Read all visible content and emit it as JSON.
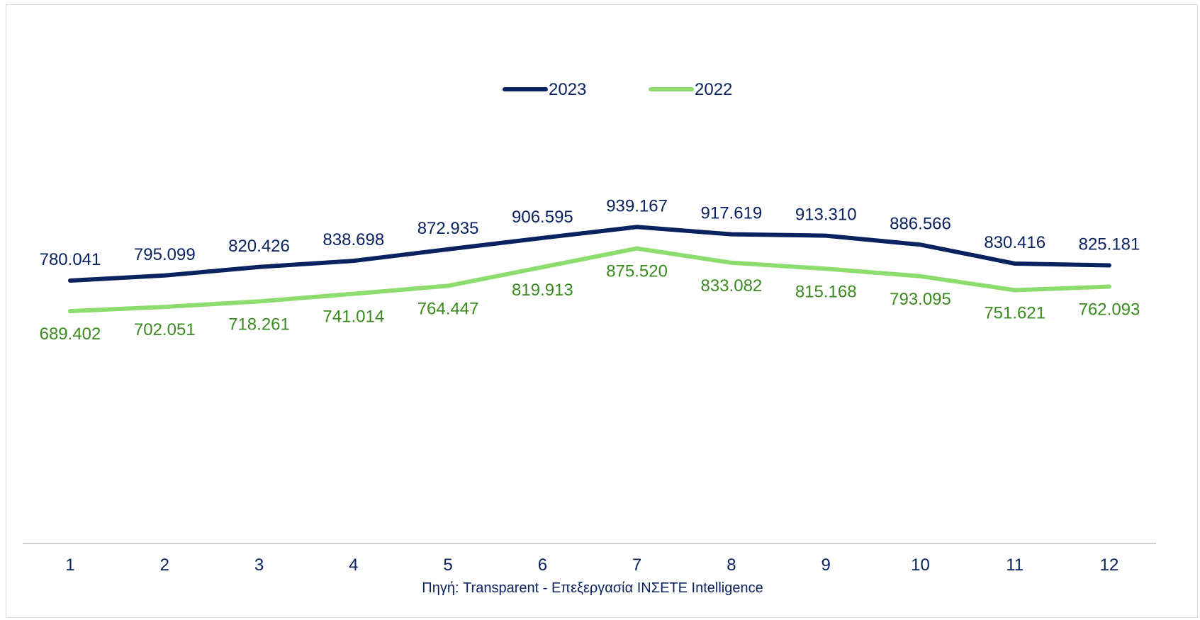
{
  "chart_data": {
    "type": "line",
    "categories": [
      "1",
      "2",
      "3",
      "4",
      "5",
      "6",
      "7",
      "8",
      "9",
      "10",
      "11",
      "12"
    ],
    "series": [
      {
        "name": "2023",
        "color": "#0b2261",
        "label_color": "#0b2261",
        "values": [
          780041,
          795099,
          820426,
          838698,
          872935,
          906595,
          939167,
          917619,
          913310,
          886566,
          830416,
          825181
        ],
        "labels": [
          "780.041",
          "795.099",
          "820.426",
          "838.698",
          "872.935",
          "906.595",
          "939.167",
          "917.619",
          "913.310",
          "886.566",
          "830.416",
          "825.181"
        ]
      },
      {
        "name": "2022",
        "color": "#8ddd6e",
        "label_color": "#3a8a1f",
        "values": [
          689402,
          702051,
          718261,
          741014,
          764447,
          819913,
          875520,
          833082,
          815168,
          793095,
          751621,
          762093
        ],
        "labels": [
          "689.402",
          "702.051",
          "718.261",
          "741.014",
          "764.447",
          "819.913",
          "875.520",
          "833.082",
          "815.168",
          "793.095",
          "751.621",
          "762.093"
        ]
      }
    ],
    "ylim": [
      0,
      1600000
    ],
    "grid": false,
    "legend_position": "top-center"
  },
  "source_note": "Πηγή: Transparent  - Επεξεργασία ΙΝΣΕΤΕ Intelligence"
}
